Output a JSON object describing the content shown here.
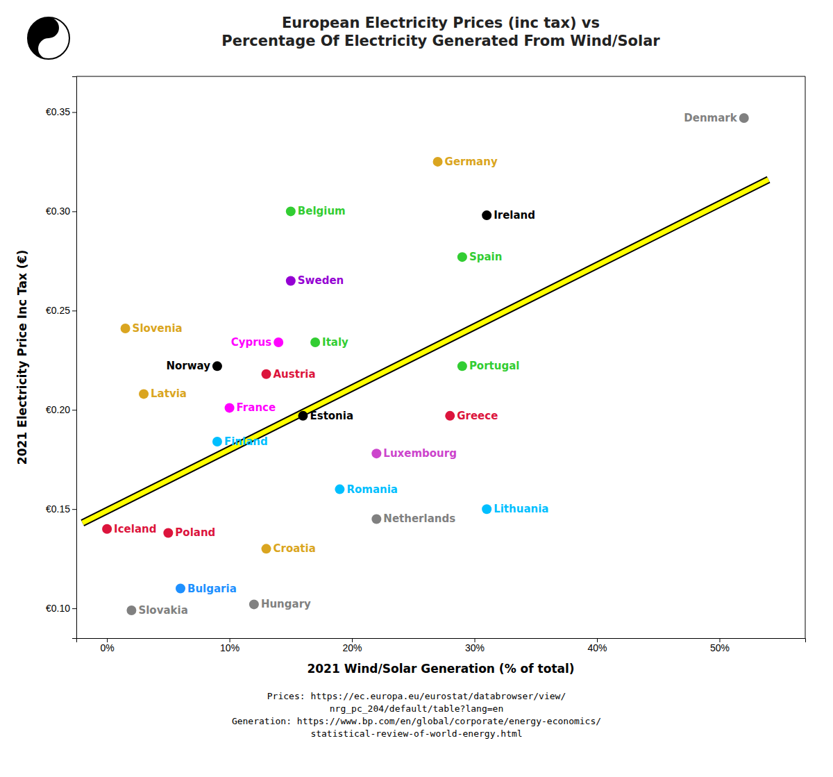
{
  "chart_data": {
    "type": "scatter",
    "title": "European Electricity Prices (inc tax) vs\nPercentage Of Electricity Generated From Wind/Solar",
    "x_label": "2021 Wind/Solar Generation (% of total)",
    "y_label": "2021 Electricity Price Inc Tax (€)",
    "annotation": "Prices: https://ec.europa.eu/eurostat/databrowser/view/\nnrg_pc_204/default/table?lang=en\nGeneration: https://www.bp.com/en/global/corporate/energy-economics/\nstatistical-review-of-world-energy.html",
    "labels": [
      "Germany",
      "Denmark",
      "Belgium",
      "Ireland",
      "Sweden",
      "Spain",
      "Cyprus",
      "Italy",
      "Portugal",
      "Norway",
      "Austria",
      "Estonia",
      "Slovenia",
      "Latvia",
      "France",
      "Finland",
      "Luxembourg",
      "Greece",
      "Iceland",
      "Poland",
      "Croatia",
      "Romania",
      "Lithuania",
      "Netherlands",
      "Bulgaria",
      "Hungary",
      "Slovakia"
    ],
    "x": [
      27,
      52,
      15,
      31,
      15,
      29,
      14,
      17,
      29,
      9,
      13,
      16,
      1.5,
      3,
      10,
      9,
      22,
      28,
      0,
      5,
      13,
      19,
      31,
      22,
      6,
      12,
      2
    ],
    "values": [
      0.325,
      0.347,
      0.3,
      0.298,
      0.265,
      0.277,
      0.234,
      0.234,
      0.222,
      0.222,
      0.218,
      0.197,
      0.241,
      0.208,
      0.201,
      0.184,
      0.178,
      0.197,
      0.14,
      0.138,
      0.13,
      0.16,
      0.15,
      0.145,
      0.11,
      0.102,
      0.099
    ],
    "colors": [
      "#DAA520",
      "#808080",
      "#32CD32",
      "#000000",
      "#9400D3",
      "#32CD32",
      "#FF00FF",
      "#32CD32",
      "#32CD32",
      "#000000",
      "#DC143C",
      "#000000",
      "#DAA520",
      "#DAA520",
      "#FF00FF",
      "#00BFFF",
      "#CC44CC",
      "#DC143C",
      "#DC143C",
      "#DC143C",
      "#DAA520",
      "#00BFFF",
      "#00BFFF",
      "#808080",
      "#1E90FF",
      "#808080",
      "#808080"
    ],
    "trendline": {
      "x": [
        -2,
        54
      ],
      "values": [
        0.143,
        0.316
      ],
      "color": "yellow"
    },
    "xlim": [
      -2.5,
      57
    ],
    "ylim": [
      0.085,
      0.368
    ],
    "xticks": [
      {
        "value": 0,
        "label": "0%"
      },
      {
        "value": 10,
        "label": "10%"
      },
      {
        "value": 20,
        "label": "20%"
      },
      {
        "value": 30,
        "label": "30%"
      },
      {
        "value": 40,
        "label": "40%"
      },
      {
        "value": 50,
        "label": "50%"
      }
    ],
    "yticks": [
      {
        "value": 0.1,
        "label": "€0.10"
      },
      {
        "value": 0.15,
        "label": "€0.15"
      },
      {
        "value": 0.2,
        "label": "€0.20"
      },
      {
        "value": 0.25,
        "label": "€0.25"
      },
      {
        "value": 0.3,
        "label": "€0.30"
      },
      {
        "value": 0.35,
        "label": "€0.35"
      }
    ],
    "grid": false
  }
}
